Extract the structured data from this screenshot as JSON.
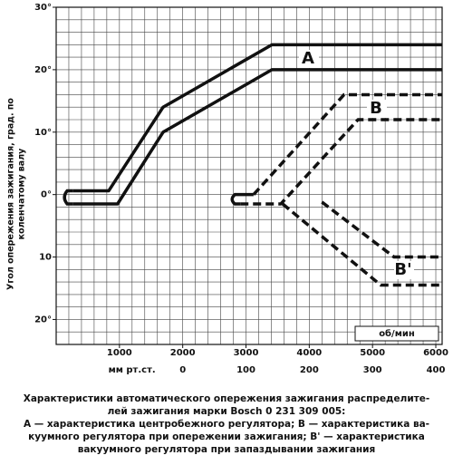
{
  "chart_data": {
    "type": "line",
    "ylabel": [
      "Угол опережения зажигания, град. по",
      "коленчатому валу"
    ],
    "xlabel": "об/мин",
    "x2label": "мм рт.ст.",
    "xlim": [
      0,
      6100
    ],
    "xticks": [
      1000,
      2000,
      3000,
      4000,
      5000,
      6000
    ],
    "x2lim": [
      -200,
      410
    ],
    "x2ticks": [
      0,
      100,
      200,
      300,
      400
    ],
    "ylim": [
      -24,
      30
    ],
    "yticks": [
      {
        "value": 30,
        "label": "30°"
      },
      {
        "value": 20,
        "label": "20°"
      },
      {
        "value": 10,
        "label": "10°"
      },
      {
        "value": 0,
        "label": "0°"
      },
      {
        "value": -10,
        "label": "10"
      },
      {
        "value": -20,
        "label": "20°"
      }
    ],
    "grid": true,
    "minor_grid": {
      "x": 200,
      "y": 2
    },
    "series": [
      {
        "name": "A",
        "axis": "x",
        "color": "#111111",
        "dash": false,
        "x": [
          260,
          830,
          1690,
          3410,
          6100
        ],
        "values": [
          0.6,
          0.6,
          14,
          24,
          24
        ]
      },
      {
        "axis": "x",
        "color": "#111111",
        "dash": false,
        "x": [
          260,
          970,
          1690,
          3410,
          6100
        ],
        "values": [
          -1.5,
          -1.5,
          10,
          20,
          20
        ]
      },
      {
        "name": "B",
        "axis": "x2",
        "color": "#111111",
        "dash": true,
        "x": [
          112,
          255,
          410
        ],
        "values": [
          0,
          16,
          16
        ]
      },
      {
        "axis": "x2",
        "color": "#111111",
        "dash": true,
        "x": [
          91,
          155,
          277,
          410
        ],
        "values": [
          -1.5,
          -1.5,
          12,
          12
        ]
      },
      {
        "name": "B'",
        "axis": "x2",
        "color": "#111111",
        "dash": true,
        "x": [
          220,
          334,
          410
        ],
        "values": [
          -1.2,
          -10,
          -10
        ]
      },
      {
        "axis": "x2",
        "color": "#111111",
        "dash": true,
        "x": [
          158,
          313,
          410
        ],
        "values": [
          -1.5,
          -14.5,
          -14.5
        ]
      }
    ],
    "caption": [
      "Характеристики автоматического опережения зажигания распределите-",
      "лей зажигания марки Bosch 0 231 309 005:",
      "А — характеристика центробежного регулятора; В — характеристика ва-",
      "куумного регулятора при опережении зажигания; В' — характеристика",
      "вакуумного регулятора при запаздывании зажигания"
    ]
  }
}
